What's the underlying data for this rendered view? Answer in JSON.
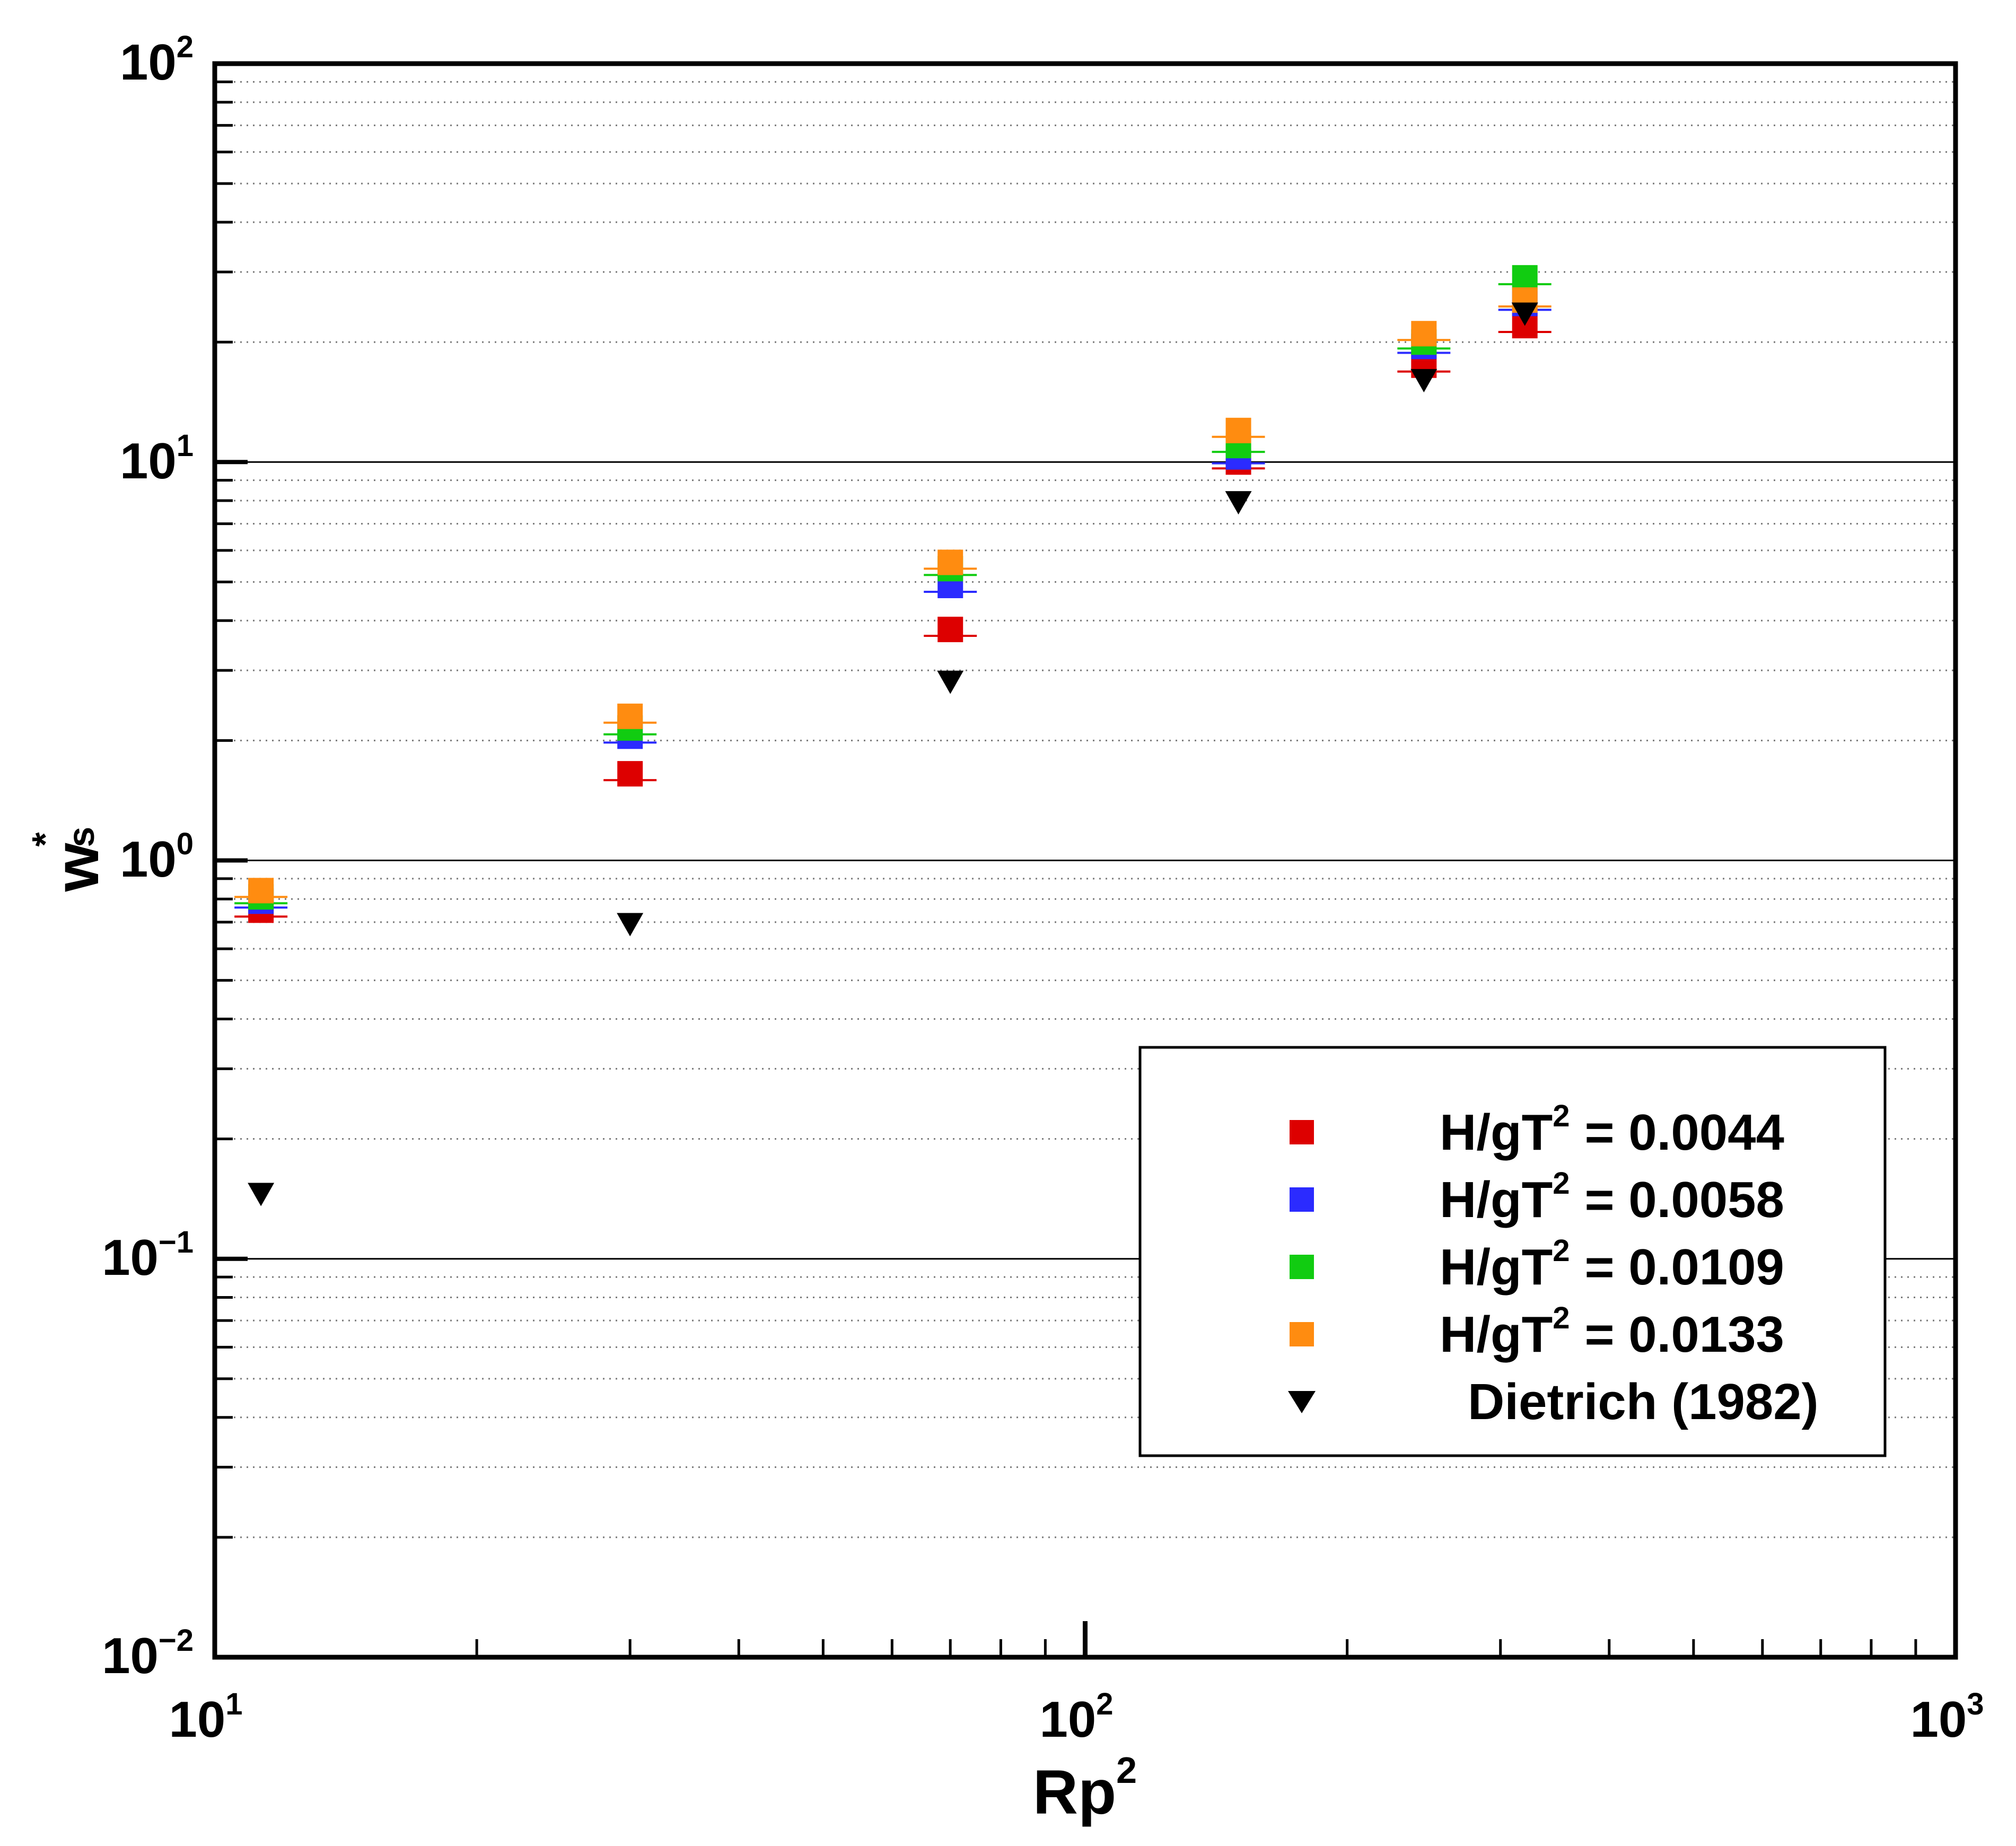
{
  "chart_data": {
    "type": "scatter",
    "xscale": "log",
    "yscale": "log",
    "xlim": [
      10,
      1000
    ],
    "ylim": [
      0.01,
      100
    ],
    "xlabel": {
      "base": "Rp",
      "sup": "2"
    },
    "ylabel": {
      "base": "w",
      "sub": "s",
      "sup": "*"
    },
    "x_ticks": [
      {
        "value": 10,
        "base": "10",
        "exp": "1"
      },
      {
        "value": 100,
        "base": "10",
        "exp": "2"
      },
      {
        "value": 1000,
        "base": "10",
        "exp": "3"
      }
    ],
    "y_ticks": [
      {
        "value": 0.01,
        "base": "10",
        "exp": "−2"
      },
      {
        "value": 0.1,
        "base": "10",
        "exp": "−1"
      },
      {
        "value": 1,
        "base": "10",
        "exp": "0"
      },
      {
        "value": 10,
        "base": "10",
        "exp": "1"
      },
      {
        "value": 100,
        "base": "10",
        "exp": "2"
      }
    ],
    "grid": {
      "major_y": "solid",
      "minor_y": "dotted",
      "x": "none"
    },
    "legend_position": "bottom-right",
    "series": [
      {
        "name": "H/gT² = 0.0044",
        "label_prefix": "H/gT",
        "label_sup": "2",
        "label_value": "=  0.0044",
        "marker": "square",
        "color": "#dd0000",
        "x": [
          11.3,
          30,
          70,
          150,
          245,
          320
        ],
        "y": [
          0.75,
          1.65,
          3.8,
          10.0,
          17.5,
          22.0
        ]
      },
      {
        "name": "H/gT² = 0.0058",
        "label_prefix": "H/gT",
        "label_sup": "2",
        "label_value": "=  0.0058",
        "marker": "square",
        "color": "#2b2bff",
        "x": [
          11.3,
          30,
          70,
          150,
          245,
          320
        ],
        "y": [
          0.79,
          2.05,
          4.9,
          10.3,
          19.5,
          25.0
        ]
      },
      {
        "name": "H/gT² = 0.0109",
        "label_prefix": "H/gT",
        "label_sup": "2",
        "label_value": "=  0.0109",
        "marker": "square",
        "color": "#11cc11",
        "x": [
          11.3,
          30,
          70,
          150,
          245,
          320
        ],
        "y": [
          0.81,
          2.15,
          5.4,
          11.0,
          20.0,
          29.0
        ]
      },
      {
        "name": "H/gT² = 0.0133",
        "label_prefix": "H/gT",
        "label_sup": "2",
        "label_value": "=  0.0133",
        "marker": "square",
        "color": "#ff8c10",
        "x": [
          11.3,
          30,
          70,
          150,
          245,
          320
        ],
        "y": [
          0.84,
          2.3,
          5.6,
          12.0,
          21.0,
          25.5
        ]
      },
      {
        "name": "Dietrich (1982)",
        "label_prefix": "Dietrich (1982)",
        "label_sup": "",
        "label_value": "",
        "marker": "triangle-down",
        "color": "#000000",
        "x": [
          11.3,
          30,
          70,
          150,
          245,
          320
        ],
        "y": [
          0.145,
          0.69,
          2.8,
          7.9,
          16.0,
          23.5
        ]
      }
    ]
  }
}
